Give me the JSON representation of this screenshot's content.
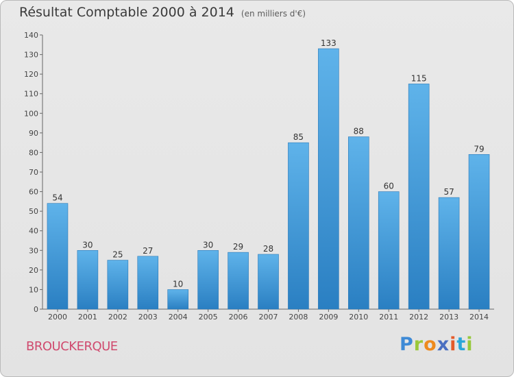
{
  "chart_data": {
    "type": "bar",
    "title": "Résultat Comptable 2000 à 2014",
    "subtitle": "(en milliers d'€)",
    "categories": [
      "2000",
      "2001",
      "2002",
      "2003",
      "2004",
      "2005",
      "2006",
      "2007",
      "2008",
      "2009",
      "2010",
      "2011",
      "2012",
      "2013",
      "2014"
    ],
    "values": [
      54,
      30,
      25,
      27,
      10,
      30,
      29,
      28,
      85,
      133,
      88,
      60,
      115,
      57,
      79
    ],
    "ylim": [
      0,
      140
    ],
    "yticks": [
      0,
      10,
      20,
      30,
      40,
      50,
      60,
      70,
      80,
      90,
      100,
      110,
      120,
      130,
      140
    ],
    "xlabel": "",
    "ylabel": "",
    "grid": false,
    "bar_color_top": "#5fb3ea",
    "bar_color_bottom": "#2a7fc2"
  },
  "commune": "BROUCKERQUE",
  "logo": {
    "letters": [
      "P",
      "r",
      "o",
      "x",
      "i",
      "t",
      "i"
    ]
  }
}
